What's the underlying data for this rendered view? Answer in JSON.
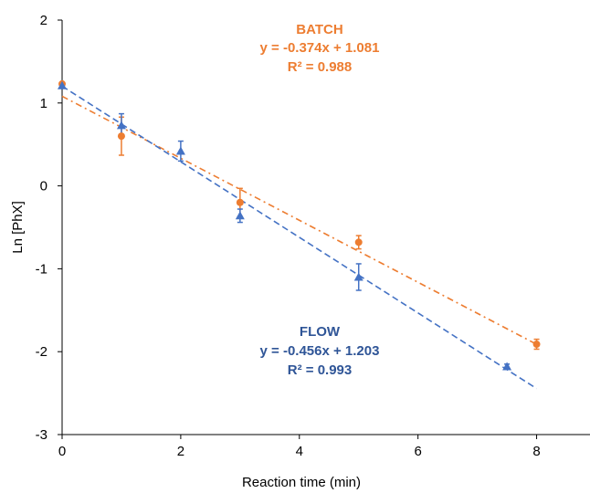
{
  "chart_data": {
    "type": "scatter",
    "title": "",
    "xlabel": "Reaction time (min)",
    "ylabel": "Ln [PhX]",
    "xlim": [
      0,
      8.9
    ],
    "ylim": [
      -3,
      2
    ],
    "x_ticks": [
      0,
      2,
      4,
      6,
      8
    ],
    "y_ticks": [
      2,
      1,
      0,
      -1,
      -2,
      -3
    ],
    "grid": false,
    "legend": "none",
    "series": [
      {
        "name": "BATCH",
        "color": "#ED7D31",
        "marker": "circle",
        "trend_style": "dash-dot",
        "points": [
          {
            "x": 0,
            "y": 1.23,
            "err": 0.0
          },
          {
            "x": 1,
            "y": 0.6,
            "err": 0.23
          },
          {
            "x": 3,
            "y": -0.2,
            "err": 0.17
          },
          {
            "x": 5,
            "y": -0.68,
            "err": 0.08
          },
          {
            "x": 8,
            "y": -1.91,
            "err": 0.06
          }
        ],
        "trendline": {
          "slope": -0.374,
          "intercept": 1.081,
          "x_range": [
            0,
            8
          ]
        },
        "annotation": {
          "label": "BATCH",
          "equation": "y = -0.374x + 1.081",
          "r2": "R² = 0.988"
        }
      },
      {
        "name": "FLOW",
        "color": "#4472C4",
        "marker": "triangle",
        "trend_style": "dash",
        "points": [
          {
            "x": 0,
            "y": 1.21,
            "err": 0.0
          },
          {
            "x": 1,
            "y": 0.73,
            "err": 0.14
          },
          {
            "x": 2,
            "y": 0.42,
            "err": 0.12
          },
          {
            "x": 3,
            "y": -0.36,
            "err": 0.08
          },
          {
            "x": 5,
            "y": -1.1,
            "err": 0.16
          },
          {
            "x": 7.5,
            "y": -2.18,
            "err": 0.03
          }
        ],
        "trendline": {
          "slope": -0.456,
          "intercept": 1.203,
          "x_range": [
            0,
            8
          ]
        },
        "annotation": {
          "label": "FLOW",
          "equation": "y = -0.456x + 1.203",
          "r2": "R² = 0.993"
        }
      }
    ]
  }
}
